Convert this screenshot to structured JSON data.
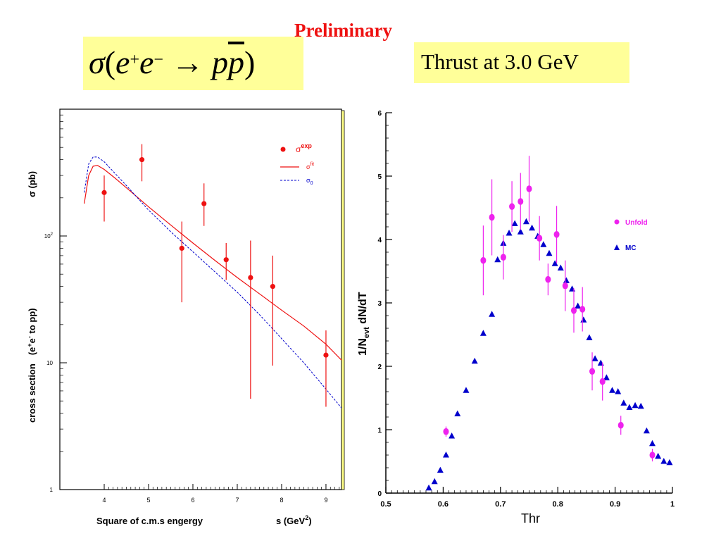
{
  "header": {
    "preliminary": "Preliminary",
    "formula": {
      "sigma": "σ",
      "open": "(",
      "e1": "e",
      "plus": "+",
      "e2": "e",
      "minus": "−",
      "arrow": " → ",
      "p": "p",
      "pbar": "p",
      "close": ")"
    },
    "thrust_title": "Thrust at 3.0 GeV"
  },
  "colors": {
    "formula_box": "#ffff99",
    "preliminary": "#ee1111",
    "exp_points": "#ee1111",
    "fit_line": "#ee1111",
    "sigma0_line": "#0000cc",
    "unfold": "#ee22ee",
    "mc": "#0000cc"
  },
  "chart_data": [
    {
      "type": "scatter",
      "title": "",
      "xlabel": "Square of c.m.s engergy",
      "xlabel_right": "s (GeV",
      "xlabel_right_sup": "2",
      "xlabel_right_end": ")",
      "ylabel_top": "σ (pb)",
      "ylabel_main": "cross section",
      "ylabel_paren": "(e",
      "ylabel_sup1": "+",
      "ylabel_mid": "e",
      "ylabel_sup2": "-",
      "ylabel_end": " to pp)",
      "yscale": "log",
      "ylim": [
        1,
        1000
      ],
      "xlim": [
        3.0,
        9.35
      ],
      "x_ticks": [
        "4",
        "5",
        "6",
        "7",
        "8",
        "9"
      ],
      "y_ticks": [
        {
          "label": "1",
          "value": 1
        },
        {
          "label": "10",
          "value": 10
        },
        {
          "label": "10",
          "sup": "2",
          "value": 100
        }
      ],
      "legend_position": "top-right",
      "series": [
        {
          "name": "σ",
          "name_sup": "exp",
          "kind": "points_with_errors",
          "x": [
            4.0,
            4.85,
            5.75,
            6.25,
            6.75,
            7.3,
            7.8,
            9.0
          ],
          "y": [
            220,
            400,
            80,
            180,
            65,
            47,
            40,
            11.5
          ],
          "y_lo": [
            130,
            270,
            30,
            120,
            45,
            5.2,
            9.5,
            4.5
          ],
          "y_hi": [
            300,
            530,
            130,
            260,
            88,
            92,
            70,
            18
          ]
        },
        {
          "name": "σ",
          "name_sup": "fit",
          "kind": "line",
          "x": [
            3.55,
            3.65,
            3.75,
            3.85,
            4.0,
            4.25,
            4.5,
            5.0,
            5.5,
            6.0,
            6.5,
            7.0,
            7.5,
            8.0,
            8.5,
            9.0,
            9.35
          ],
          "y": [
            180,
            300,
            355,
            360,
            335,
            285,
            240,
            170,
            122,
            88,
            64,
            47,
            35,
            26,
            19.5,
            14,
            10.5
          ]
        },
        {
          "name": "σ",
          "name_sub": "0",
          "kind": "line_dashed",
          "x": [
            3.55,
            3.65,
            3.75,
            3.85,
            4.0,
            4.25,
            4.5,
            5.0,
            5.5,
            6.0,
            6.5,
            7.0,
            7.5,
            8.0,
            8.5,
            9.0,
            9.35
          ],
          "y": [
            220,
            370,
            420,
            420,
            385,
            310,
            250,
            160,
            108,
            75,
            52,
            36,
            24,
            15.5,
            10,
            6.2,
            4.4
          ]
        }
      ]
    },
    {
      "type": "scatter",
      "title": "",
      "xlabel": "Thr",
      "ylabel": "1/N",
      "ylabel_sub": "evt",
      "ylabel_rest": " dN/dT",
      "xlim": [
        0.5,
        1.0
      ],
      "ylim": [
        0,
        6
      ],
      "x_ticks": [
        "0.5",
        "0.6",
        "0.7",
        "0.8",
        "0.9",
        "1"
      ],
      "y_ticks": [
        "0",
        "1",
        "2",
        "3",
        "4",
        "5",
        "6"
      ],
      "legend_position": "right",
      "series": [
        {
          "name": "Unfold",
          "kind": "points_with_errors",
          "x": [
            0.605,
            0.67,
            0.685,
            0.705,
            0.72,
            0.735,
            0.75,
            0.768,
            0.783,
            0.798,
            0.813,
            0.828,
            0.843,
            0.86,
            0.878,
            0.91,
            0.965
          ],
          "y": [
            0.97,
            3.67,
            4.35,
            3.72,
            4.52,
            4.6,
            4.8,
            4.02,
            3.37,
            4.08,
            3.27,
            2.88,
            2.9,
            1.92,
            1.76,
            1.07,
            0.6
          ],
          "err": [
            0.08,
            0.55,
            0.6,
            0.35,
            0.4,
            0.45,
            0.52,
            0.35,
            0.25,
            0.45,
            0.4,
            0.35,
            0.35,
            0.3,
            0.3,
            0.15,
            0.1
          ]
        },
        {
          "name": "MC",
          "kind": "points",
          "x": [
            0.575,
            0.585,
            0.595,
            0.605,
            0.615,
            0.625,
            0.64,
            0.655,
            0.67,
            0.685,
            0.695,
            0.705,
            0.715,
            0.725,
            0.735,
            0.745,
            0.755,
            0.765,
            0.775,
            0.785,
            0.795,
            0.805,
            0.815,
            0.825,
            0.835,
            0.845,
            0.855,
            0.865,
            0.875,
            0.885,
            0.895,
            0.905,
            0.915,
            0.925,
            0.935,
            0.945,
            0.955,
            0.965,
            0.975,
            0.985,
            0.995
          ],
          "y": [
            0.08,
            0.18,
            0.36,
            0.6,
            0.9,
            1.25,
            1.62,
            2.08,
            2.52,
            2.82,
            3.68,
            3.94,
            4.1,
            4.25,
            4.12,
            4.28,
            4.18,
            4.05,
            3.92,
            3.78,
            3.62,
            3.55,
            3.35,
            3.22,
            2.95,
            2.73,
            2.45,
            2.12,
            2.05,
            1.82,
            1.62,
            1.6,
            1.42,
            1.35,
            1.38,
            1.37,
            0.98,
            0.78,
            0.58,
            0.5,
            0.48
          ]
        }
      ]
    }
  ]
}
